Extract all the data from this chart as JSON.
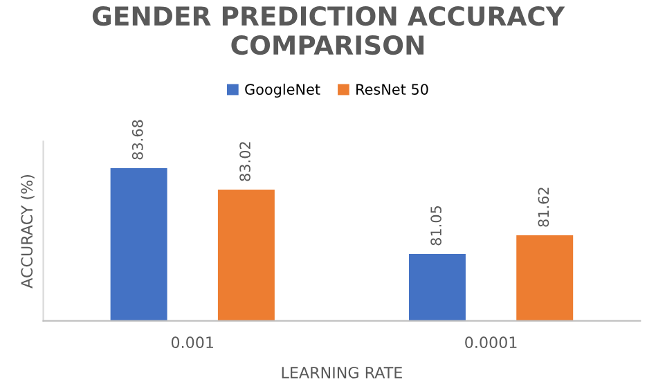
{
  "chart_data": {
    "type": "bar",
    "title": "GENDER PREDICTION ACCURACY COMPARISON",
    "xlabel": "LEARNING RATE",
    "ylabel": "ACCURACY (%)",
    "categories": [
      "0.001",
      "0.0001"
    ],
    "series": [
      {
        "name": "GoogleNet",
        "color": "#4472c4",
        "values": [
          83.68,
          81.05
        ]
      },
      {
        "name": "ResNet 50",
        "color": "#ed7d31",
        "values": [
          83.02,
          81.62
        ]
      }
    ],
    "ylim": [
      79,
      84.5
    ],
    "data_labels": true,
    "legend": "top",
    "grid": false
  }
}
